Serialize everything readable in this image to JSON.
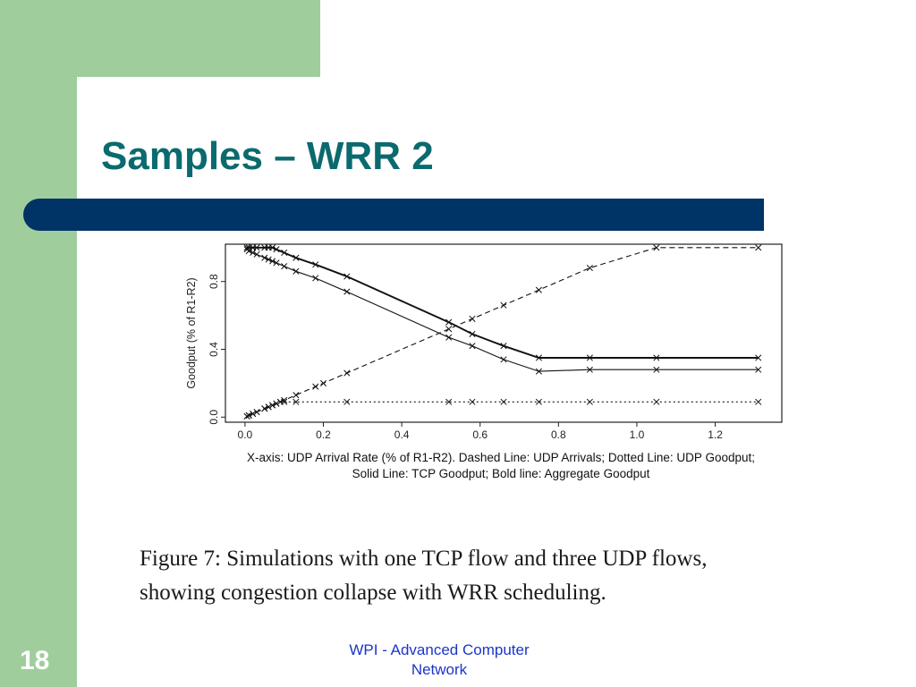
{
  "slide": {
    "title": "Samples – WRR 2",
    "page_number": "18",
    "footer": "WPI - Advanced Computer Network",
    "figure_caption_line1": "Figure 7: Simulations with one TCP flow and three UDP flows,",
    "figure_caption_line2": "showing congestion collapse with WRR scheduling.",
    "colors": {
      "accent_green": "#9fce9c",
      "title_bar": "#003366",
      "title_text": "#0b6a6e",
      "footer_text": "#1b35c9"
    }
  },
  "chart_data": {
    "type": "line",
    "title": "",
    "xlabel": "X-axis: UDP Arrival Rate (% of R1-R2).  Dashed Line: UDP Arrivals; Dotted Line: UDP Goodput;",
    "xlabel_line2": "Solid Line: TCP Goodput; Bold line: Aggregate Goodput",
    "ylabel": "Goodput (% of R1-R2)",
    "xlim": [
      -0.05,
      1.37
    ],
    "ylim": [
      -0.03,
      1.02
    ],
    "x_ticks": [
      "0.0",
      "0.2",
      "0.4",
      "0.6",
      "0.8",
      "1.0",
      "1.2"
    ],
    "y_ticks": [
      "0.0",
      "0.4",
      "0.8"
    ],
    "grid": false,
    "series": [
      {
        "style": "dashed",
        "x": [
          0.005,
          0.01,
          0.02,
          0.03,
          0.05,
          0.06,
          0.07,
          0.08,
          0.09,
          0.1,
          0.13,
          0.18,
          0.2,
          0.26,
          0.52,
          0.58,
          0.66,
          0.75,
          0.88,
          1.05,
          1.31
        ],
        "y": [
          0.005,
          0.01,
          0.02,
          0.03,
          0.05,
          0.06,
          0.07,
          0.08,
          0.09,
          0.1,
          0.13,
          0.18,
          0.2,
          0.26,
          0.52,
          0.58,
          0.66,
          0.75,
          0.88,
          1.0,
          1.0
        ]
      },
      {
        "style": "dotted",
        "x": [
          0.005,
          0.01,
          0.02,
          0.03,
          0.05,
          0.06,
          0.07,
          0.08,
          0.09,
          0.1,
          0.13,
          0.26,
          0.52,
          0.58,
          0.66,
          0.75,
          0.88,
          1.05,
          1.31
        ],
        "y": [
          0.005,
          0.01,
          0.02,
          0.03,
          0.05,
          0.06,
          0.07,
          0.08,
          0.09,
          0.09,
          0.09,
          0.09,
          0.09,
          0.09,
          0.09,
          0.09,
          0.09,
          0.09,
          0.09
        ]
      },
      {
        "style": "solid",
        "x": [
          0.005,
          0.01,
          0.02,
          0.03,
          0.05,
          0.06,
          0.07,
          0.08,
          0.1,
          0.13,
          0.18,
          0.26,
          0.52,
          0.58,
          0.66,
          0.75,
          0.88,
          1.05,
          1.31
        ],
        "y": [
          0.99,
          0.98,
          0.97,
          0.96,
          0.94,
          0.93,
          0.92,
          0.91,
          0.89,
          0.86,
          0.82,
          0.74,
          0.47,
          0.42,
          0.34,
          0.27,
          0.28,
          0.28,
          0.28
        ]
      },
      {
        "style": "bold",
        "x": [
          0.005,
          0.01,
          0.02,
          0.03,
          0.05,
          0.06,
          0.07,
          0.08,
          0.1,
          0.13,
          0.18,
          0.26,
          0.52,
          0.58,
          0.66,
          0.75,
          0.88,
          1.05,
          1.31
        ],
        "y": [
          1.0,
          1.0,
          1.0,
          1.0,
          1.0,
          1.0,
          1.0,
          0.99,
          0.97,
          0.94,
          0.9,
          0.83,
          0.56,
          0.49,
          0.42,
          0.35,
          0.35,
          0.35,
          0.35
        ]
      }
    ]
  }
}
